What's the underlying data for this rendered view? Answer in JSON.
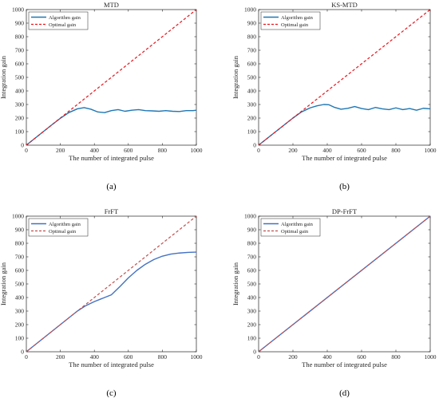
{
  "chart_data": [
    {
      "type": "line",
      "title": "MTD",
      "caption": "(a)",
      "xlabel": "The number of integrated pulse",
      "ylabel": "Integration gain",
      "xlim": [
        0,
        1000
      ],
      "ylim": [
        0,
        1000
      ],
      "xticks": [
        0,
        200,
        400,
        600,
        800,
        1000
      ],
      "yticks": [
        0,
        100,
        200,
        300,
        400,
        500,
        600,
        700,
        800,
        900,
        1000
      ],
      "legend": "top-left",
      "series": [
        {
          "name": "Algorithm gain",
          "color": "#1f77b4",
          "style": "solid",
          "x": [
            0,
            50,
            100,
            150,
            200,
            250,
            300,
            340,
            380,
            420,
            460,
            500,
            540,
            580,
            620,
            660,
            700,
            740,
            780,
            820,
            860,
            900,
            940,
            980,
            1000
          ],
          "y": [
            0,
            50,
            100,
            150,
            198,
            240,
            268,
            277,
            265,
            245,
            240,
            255,
            262,
            250,
            258,
            262,
            255,
            253,
            250,
            255,
            250,
            248,
            255,
            255,
            258
          ]
        },
        {
          "name": "Optimal gain",
          "color": "#e8141b",
          "style": "dashed",
          "x": [
            0,
            1000
          ],
          "y": [
            0,
            1000
          ]
        }
      ]
    },
    {
      "type": "line",
      "title": "KS-MTD",
      "caption": "(b)",
      "xlabel": "The number of integrated pulse",
      "ylabel": "Integration gain",
      "xlim": [
        0,
        1000
      ],
      "ylim": [
        0,
        1000
      ],
      "xticks": [
        0,
        200,
        400,
        600,
        800,
        1000
      ],
      "yticks": [
        0,
        100,
        200,
        300,
        400,
        500,
        600,
        700,
        800,
        900,
        1000
      ],
      "legend": "top-left",
      "series": [
        {
          "name": "Algorithm gain",
          "color": "#1f77b4",
          "style": "solid",
          "x": [
            0,
            50,
            100,
            150,
            200,
            250,
            300,
            340,
            380,
            410,
            440,
            480,
            520,
            560,
            600,
            640,
            680,
            720,
            760,
            800,
            840,
            880,
            920,
            960,
            1000
          ],
          "y": [
            0,
            50,
            100,
            150,
            200,
            245,
            275,
            290,
            300,
            298,
            280,
            265,
            272,
            285,
            270,
            262,
            278,
            268,
            262,
            275,
            262,
            270,
            258,
            272,
            268
          ]
        },
        {
          "name": "Optimal gain",
          "color": "#e8141b",
          "style": "dashed",
          "x": [
            0,
            1000
          ],
          "y": [
            0,
            1000
          ]
        }
      ]
    },
    {
      "type": "line",
      "title": "FrFT",
      "caption": "(c)",
      "xlabel": "The number of integrated pulse",
      "ylabel": "Integration gain",
      "xlim": [
        0,
        1000
      ],
      "ylim": [
        0,
        1000
      ],
      "xticks": [
        0,
        200,
        400,
        600,
        800,
        1000
      ],
      "yticks": [
        0,
        100,
        200,
        300,
        400,
        500,
        600,
        700,
        800,
        900,
        1000
      ],
      "legend": "top-left",
      "series": [
        {
          "name": "Algorithm gain",
          "color": "#4472c4",
          "style": "solid",
          "x": [
            0,
            100,
            200,
            300,
            350,
            400,
            450,
            500,
            550,
            600,
            650,
            700,
            750,
            800,
            850,
            900,
            950,
            1000
          ],
          "y": [
            0,
            100,
            200,
            300,
            340,
            370,
            395,
            420,
            480,
            545,
            600,
            645,
            680,
            705,
            720,
            728,
            733,
            735
          ]
        },
        {
          "name": "Optimal gain",
          "color": "#c0504d",
          "style": "dashed",
          "x": [
            0,
            1000
          ],
          "y": [
            0,
            1000
          ]
        }
      ]
    },
    {
      "type": "line",
      "title": "DP-FrFT",
      "caption": "(d)",
      "xlabel": "The number of integrated pulse",
      "ylabel": "Integration gain",
      "xlim": [
        0,
        1000
      ],
      "ylim": [
        0,
        1000
      ],
      "xticks": [
        0,
        200,
        400,
        600,
        800,
        1000
      ],
      "yticks": [
        0,
        100,
        200,
        300,
        400,
        500,
        600,
        700,
        800,
        900,
        1000
      ],
      "legend": "top-left",
      "series": [
        {
          "name": "Algorithm gain",
          "color": "#4472c4",
          "style": "solid",
          "x": [
            0,
            1000
          ],
          "y": [
            0,
            1000
          ]
        },
        {
          "name": "Optimal gain",
          "color": "#c0504d",
          "style": "dashed",
          "x": [
            0,
            1000
          ],
          "y": [
            0,
            1000
          ]
        }
      ]
    }
  ]
}
